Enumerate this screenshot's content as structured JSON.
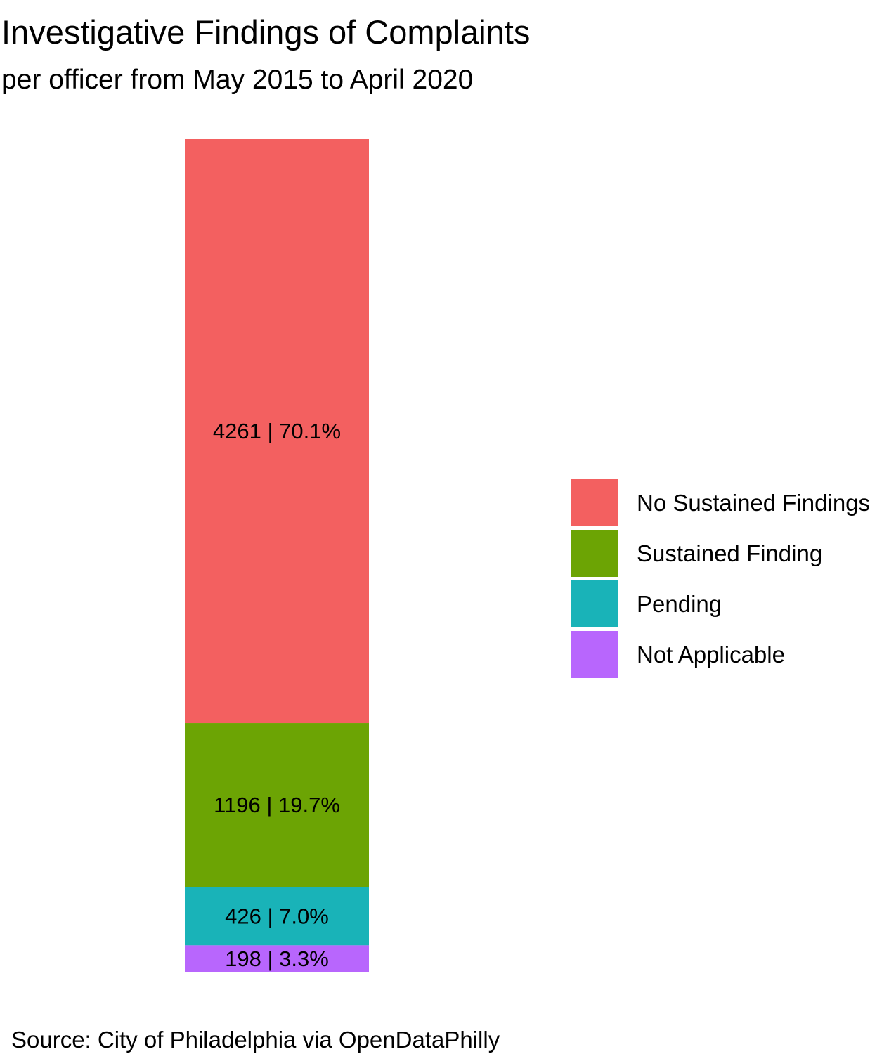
{
  "chart_data": {
    "type": "bar",
    "stacked": true,
    "title": "Investigative Findings of Complaints",
    "subtitle": "per officer from May 2015 to April 2020",
    "caption": "Source: City of Philadelphia via OpenDataPhilly",
    "xlabel": "",
    "ylabel": "",
    "grid": false,
    "legend_position": "right",
    "series": [
      {
        "name": "No Sustained Findings",
        "value": 4261,
        "percent": 70.1,
        "label": "4261 | 70.1%",
        "color": "#F36060"
      },
      {
        "name": "Sustained Finding",
        "value": 1196,
        "percent": 19.7,
        "label": "1196 | 19.7%",
        "color": "#6CA404"
      },
      {
        "name": "Pending",
        "value": 426,
        "percent": 7.0,
        "label": "426 | 7.0%",
        "color": "#19B3B8"
      },
      {
        "name": "Not Applicable",
        "value": 198,
        "percent": 3.3,
        "label": "198 | 3.3%",
        "color": "#B866FD"
      }
    ]
  }
}
